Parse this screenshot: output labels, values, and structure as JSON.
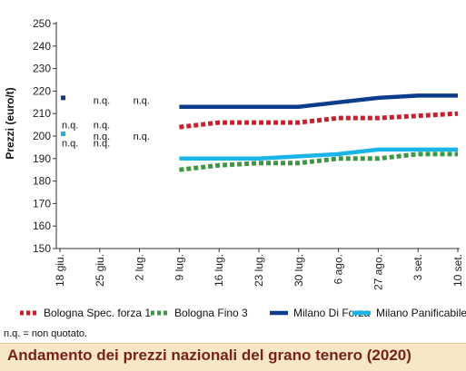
{
  "chart_data": {
    "type": "line",
    "title": "Andamento dei prezzi nazionali del grano tenero (2020)",
    "ylabel": "Prezzi (euro/t)",
    "xlabel": "",
    "ylim": [
      150,
      250
    ],
    "yticks": [
      150,
      160,
      170,
      180,
      190,
      200,
      210,
      220,
      230,
      240,
      250
    ],
    "grid": false,
    "legend": "bottom",
    "categories": [
      "18 giu.",
      "25 giu.",
      "2 lug.",
      "9 lug.",
      "16 lug.",
      "23 lug.",
      "30 lug.",
      "6 ago.",
      "27 ago.",
      "3 set.",
      "10 set."
    ],
    "series": [
      {
        "name": "Bologna Spec. forza 1",
        "color": "#d7192a",
        "style": "dotted",
        "values": [
          null,
          null,
          null,
          204,
          206,
          206,
          206,
          208,
          208,
          209,
          210
        ]
      },
      {
        "name": "Bologna Fino 3",
        "color": "#3a9a3f",
        "style": "dotted",
        "values": [
          null,
          null,
          null,
          185,
          187,
          188,
          188,
          190,
          190,
          192,
          192
        ]
      },
      {
        "name": "Milano Di Forza",
        "color": "#0b3d8c",
        "style": "solid",
        "values": [
          217,
          null,
          null,
          213,
          213,
          213,
          213,
          215,
          217,
          218,
          218
        ]
      },
      {
        "name": "Milano Panificabile",
        "color": "#19b4e8",
        "style": "solid",
        "values": [
          201,
          null,
          null,
          190,
          190,
          190,
          191,
          192,
          194,
          194,
          194
        ]
      }
    ],
    "annotations": [
      {
        "text": "n.q.",
        "category": "25 giu.",
        "y": 216
      },
      {
        "text": "n.q.",
        "category": "2 lug.",
        "y": 216
      },
      {
        "text": "n.q.",
        "category": "18 giu.",
        "y": 205
      },
      {
        "text": "n.q.",
        "category": "25 giu.",
        "y": 205
      },
      {
        "text": "n.q.",
        "category": "18 giu.",
        "y": 197
      },
      {
        "text": "n.q.",
        "category": "25 giu.",
        "y": 197
      },
      {
        "text": "n.q.",
        "category": "2 lug.",
        "y": 200
      },
      {
        "text": "n.q.",
        "category": "25 giu.",
        "y": 200
      }
    ],
    "footnote": "n.q. = non quotato."
  }
}
